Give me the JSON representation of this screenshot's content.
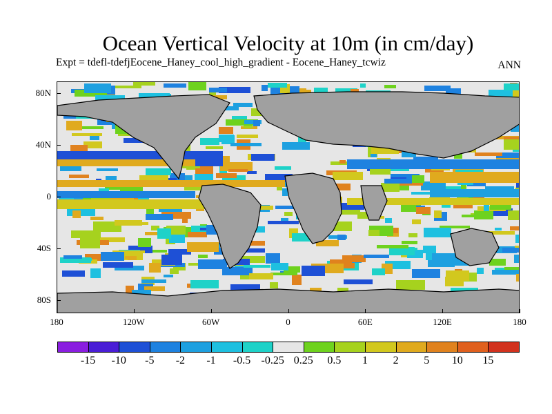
{
  "title": "Ocean Vertical Velocity at 10m (in cm/day)",
  "subtitle": "Expt = tdefl-tdefjEocene_Haney_cool_high_gradient - Eocene_Haney_tcwiz",
  "season": "ANN",
  "lat_labels": [
    "80N",
    "40N",
    "0",
    "40S",
    "80S"
  ],
  "lon_labels": [
    "180",
    "120W",
    "60W",
    "0",
    "60E",
    "120E",
    "180"
  ],
  "colorbar": {
    "labels": [
      "-15",
      "-10",
      "-5",
      "-2",
      "-1",
      "-0.5",
      "-0.25",
      "0.25",
      "0.5",
      "1",
      "2",
      "5",
      "10",
      "15"
    ],
    "colors": [
      "#8a1ee0",
      "#4a1ed6",
      "#1e50d6",
      "#1e82e0",
      "#1ea0e0",
      "#1ec0e0",
      "#1ed2c8",
      "#e6e6e6",
      "#6ed21e",
      "#a6d21e",
      "#d2c81e",
      "#e0aa1e",
      "#e0821e",
      "#e0601e",
      "#d2321e"
    ]
  },
  "land_color": "#a0a0a0",
  "ocean_neutral_color": "#e6e6e6"
}
